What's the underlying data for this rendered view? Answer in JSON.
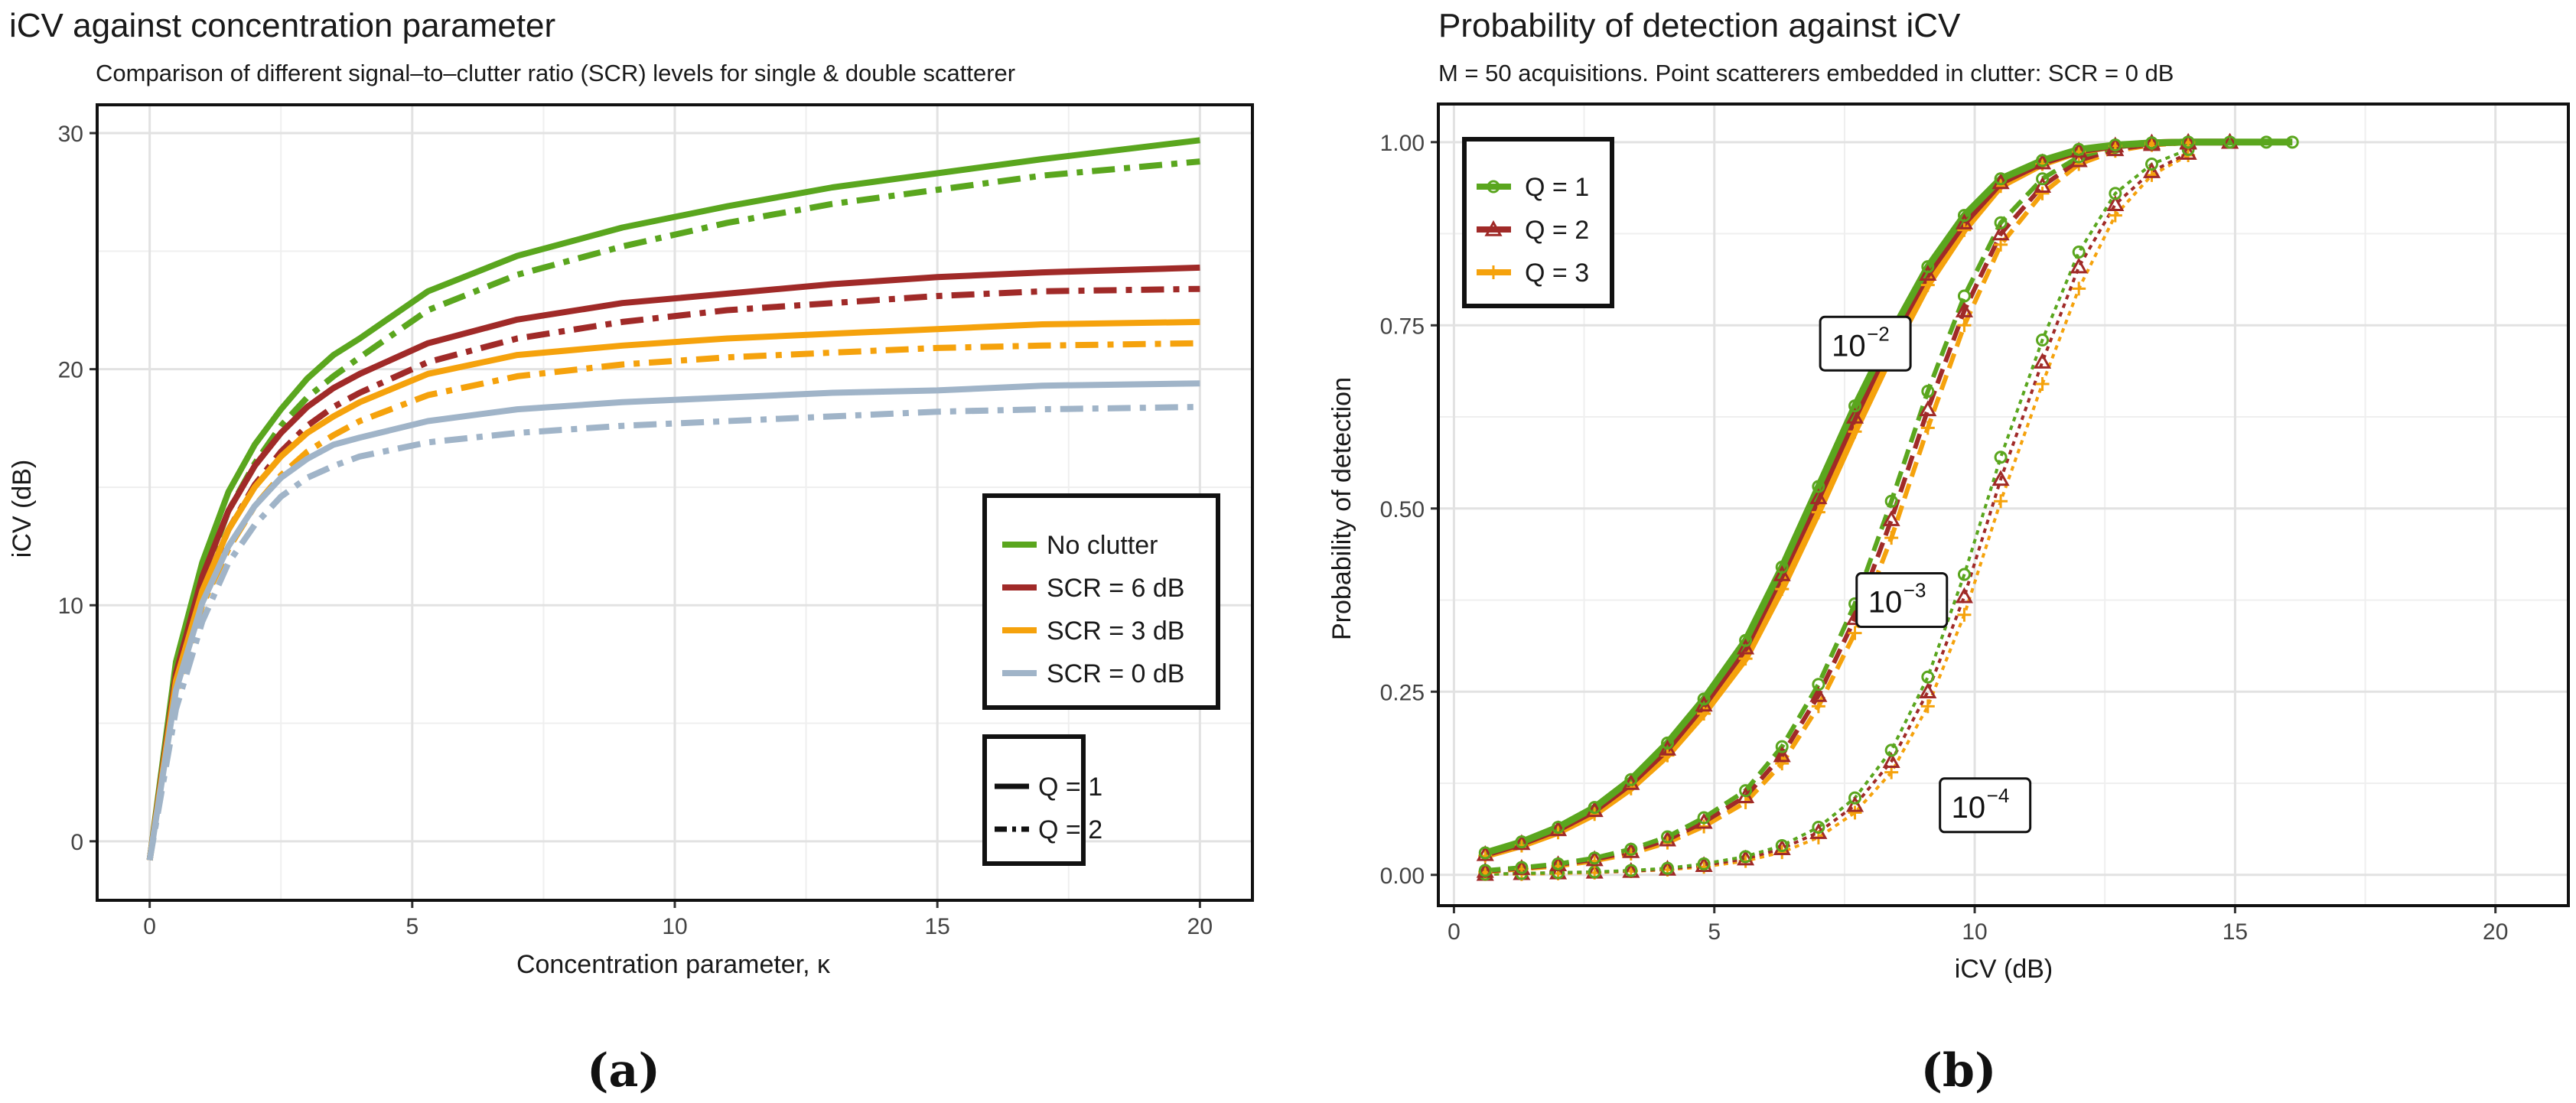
{
  "panel_labels": [
    "(a)",
    "(b)"
  ],
  "chart_data": [
    {
      "type": "line",
      "title": "iCV against concentration parameter",
      "subtitle": "Comparison of different signal–to–clutter ratio (SCR) levels for single & double scatterer",
      "xlabel": "Concentration parameter,  κ",
      "ylabel": "iCV (dB)",
      "xlim": [
        -1,
        21
      ],
      "ylim": [
        -2.5,
        31.2
      ],
      "xticks": [
        0,
        5,
        10,
        15,
        20
      ],
      "yticks": [
        0,
        10,
        20,
        30
      ],
      "grid": true,
      "x": [
        0,
        0.5,
        1,
        1.5,
        2,
        2.5,
        3,
        3.5,
        4,
        5.3,
        7,
        9,
        11,
        13,
        15,
        17,
        20
      ],
      "series": [
        {
          "name": "No clutter",
          "q": 1,
          "color": "#5aa61e",
          "values": [
            -0.8,
            7.6,
            11.8,
            14.8,
            16.8,
            18.3,
            19.6,
            20.6,
            21.3,
            23.3,
            24.8,
            26.0,
            26.9,
            27.7,
            28.3,
            28.9,
            29.7
          ]
        },
        {
          "name": "No clutter",
          "q": 2,
          "color": "#5aa61e",
          "values": [
            -0.8,
            6.8,
            11.0,
            14.0,
            16.0,
            17.6,
            18.8,
            19.7,
            20.5,
            22.5,
            24.0,
            25.2,
            26.2,
            27.0,
            27.6,
            28.2,
            28.8
          ]
        },
        {
          "name": "SCR = 6 dB",
          "q": 1,
          "color": "#a02a28",
          "values": [
            -0.8,
            7.1,
            11.2,
            14.0,
            15.9,
            17.3,
            18.4,
            19.2,
            19.8,
            21.1,
            22.1,
            22.8,
            23.2,
            23.6,
            23.9,
            24.1,
            24.3
          ]
        },
        {
          "name": "SCR = 6 dB",
          "q": 2,
          "color": "#a02a28",
          "values": [
            -0.8,
            6.5,
            10.5,
            13.2,
            15.1,
            16.5,
            17.6,
            18.4,
            19.0,
            20.3,
            21.3,
            22.0,
            22.5,
            22.8,
            23.1,
            23.3,
            23.4
          ]
        },
        {
          "name": "SCR = 3 dB",
          "q": 1,
          "color": "#f5a20c",
          "values": [
            -0.8,
            6.8,
            10.6,
            13.2,
            15.0,
            16.3,
            17.3,
            18.0,
            18.6,
            19.8,
            20.6,
            21.0,
            21.3,
            21.5,
            21.7,
            21.9,
            22.0
          ]
        },
        {
          "name": "SCR = 3 dB",
          "q": 2,
          "color": "#f5a20c",
          "values": [
            -0.8,
            6.2,
            10.0,
            12.4,
            14.2,
            15.5,
            16.5,
            17.2,
            17.8,
            18.9,
            19.7,
            20.2,
            20.5,
            20.7,
            20.9,
            21.0,
            21.1
          ]
        },
        {
          "name": "SCR = 0 dB",
          "q": 1,
          "color": "#a0b4c8",
          "values": [
            -0.8,
            6.4,
            10.1,
            12.5,
            14.2,
            15.4,
            16.2,
            16.8,
            17.1,
            17.8,
            18.3,
            18.6,
            18.8,
            19.0,
            19.1,
            19.3,
            19.4
          ]
        },
        {
          "name": "SCR = 0 dB",
          "q": 2,
          "color": "#a0b4c8",
          "values": [
            -0.8,
            5.6,
            9.3,
            11.8,
            13.4,
            14.6,
            15.4,
            15.9,
            16.3,
            16.9,
            17.3,
            17.6,
            17.8,
            18.0,
            18.2,
            18.3,
            18.4
          ]
        }
      ],
      "legend_color": {
        "entries": [
          "No clutter",
          "SCR = 6 dB",
          "SCR = 3 dB",
          "SCR = 0 dB"
        ],
        "colors": [
          "#5aa61e",
          "#a02a28",
          "#f5a20c",
          "#a0b4c8"
        ],
        "placement": "right-middle"
      },
      "legend_linetype": {
        "entries": [
          "Q = 1",
          "Q = 2"
        ],
        "placement": "bottom-right"
      }
    },
    {
      "type": "line",
      "title": "Probability of detection against iCV",
      "subtitle": "M = 50 acquisitions. Point scatterers embedded in clutter: SCR = 0 dB",
      "xlabel": "iCV (dB)",
      "ylabel": "Probability of detection",
      "xlim": [
        -0.3,
        21.4
      ],
      "ylim": [
        -0.042,
        1.052
      ],
      "xticks": [
        0,
        5,
        10,
        15,
        20
      ],
      "yticks": [
        0,
        0.25,
        0.5,
        0.75,
        1
      ],
      "ytick_labels": [
        "0.00",
        "0.25",
        "0.50",
        "0.75",
        "1.00"
      ],
      "grid": true,
      "legend": {
        "entries": [
          "Q = 1",
          "Q = 2",
          "Q = 3"
        ],
        "colors": [
          "#5aa61e",
          "#a02a28",
          "#f5a20c"
        ],
        "markers": [
          "circle",
          "triangle",
          "plus"
        ],
        "placement": "top-left"
      },
      "annotations": [
        {
          "base": "10",
          "exp": "−2",
          "x": 7.9,
          "y": 0.725
        },
        {
          "base": "10",
          "exp": "−3",
          "x": 8.6,
          "y": 0.375
        },
        {
          "base": "10",
          "exp": "−4",
          "x": 10.2,
          "y": 0.095
        }
      ],
      "series": [
        {
          "name": "Q = 1",
          "pfa": "10^-2",
          "color": "#5aa61e",
          "marker": "circle",
          "x": [
            0.6,
            1.3,
            2.0,
            2.7,
            3.4,
            4.1,
            4.8,
            5.6,
            6.3,
            7.0,
            7.7,
            8.4,
            9.1,
            9.8,
            10.5,
            11.3,
            12.0,
            12.7,
            13.4,
            14.1,
            14.9,
            15.6,
            16.1
          ],
          "values": [
            0.03,
            0.045,
            0.065,
            0.092,
            0.13,
            0.18,
            0.24,
            0.32,
            0.42,
            0.53,
            0.64,
            0.74,
            0.83,
            0.9,
            0.95,
            0.975,
            0.99,
            0.996,
            0.999,
            1.0,
            1.0,
            1.0,
            1.0
          ]
        },
        {
          "name": "Q = 2",
          "pfa": "10^-2",
          "color": "#a02a28",
          "marker": "triangle",
          "x": [
            0.6,
            1.3,
            2.0,
            2.7,
            3.4,
            4.1,
            4.8,
            5.6,
            6.3,
            7.0,
            7.7,
            8.4,
            9.1,
            9.8,
            10.5,
            11.3,
            12.0,
            12.7,
            13.4,
            14.1,
            14.9
          ],
          "values": [
            0.028,
            0.043,
            0.062,
            0.088,
            0.125,
            0.172,
            0.232,
            0.31,
            0.41,
            0.515,
            0.625,
            0.73,
            0.82,
            0.89,
            0.945,
            0.972,
            0.988,
            0.995,
            0.999,
            1.0,
            1.0
          ]
        },
        {
          "name": "Q = 3",
          "pfa": "10^-2",
          "color": "#f5a20c",
          "marker": "plus",
          "x": [
            0.6,
            1.3,
            2.0,
            2.7,
            3.4,
            4.1,
            4.8,
            5.6,
            6.3,
            7.0,
            7.7,
            8.4,
            9.1,
            9.8,
            10.5,
            11.3,
            12.0,
            12.7,
            13.4,
            14.1
          ],
          "values": [
            0.026,
            0.04,
            0.058,
            0.083,
            0.118,
            0.163,
            0.22,
            0.295,
            0.39,
            0.495,
            0.605,
            0.71,
            0.805,
            0.88,
            0.94,
            0.97,
            0.987,
            0.995,
            0.999,
            1.0
          ]
        },
        {
          "name": "Q = 1",
          "pfa": "10^-3",
          "color": "#5aa61e",
          "marker": "circle",
          "x": [
            0.6,
            1.3,
            2.0,
            2.7,
            3.4,
            4.1,
            4.8,
            5.6,
            6.3,
            7.0,
            7.7,
            8.4,
            9.1,
            9.8,
            10.5,
            11.3,
            12.0,
            12.7,
            13.4,
            14.1,
            14.9
          ],
          "values": [
            0.006,
            0.01,
            0.015,
            0.023,
            0.035,
            0.052,
            0.078,
            0.115,
            0.175,
            0.26,
            0.37,
            0.51,
            0.66,
            0.79,
            0.89,
            0.95,
            0.98,
            0.993,
            0.998,
            1.0,
            1.0
          ]
        },
        {
          "name": "Q = 2",
          "pfa": "10^-3",
          "color": "#a02a28",
          "marker": "triangle",
          "x": [
            0.6,
            1.3,
            2.0,
            2.7,
            3.4,
            4.1,
            4.8,
            5.6,
            6.3,
            7.0,
            7.7,
            8.4,
            9.1,
            9.8,
            10.5,
            11.3,
            12.0,
            12.7,
            13.4,
            14.1,
            14.9
          ],
          "values": [
            0.005,
            0.009,
            0.014,
            0.021,
            0.032,
            0.048,
            0.072,
            0.107,
            0.163,
            0.245,
            0.35,
            0.485,
            0.635,
            0.77,
            0.875,
            0.94,
            0.975,
            0.99,
            0.997,
            0.999,
            1.0
          ]
        },
        {
          "name": "Q = 3",
          "pfa": "10^-3",
          "color": "#f5a20c",
          "marker": "plus",
          "x": [
            0.6,
            1.3,
            2.0,
            2.7,
            3.4,
            4.1,
            4.8,
            5.6,
            6.3,
            7.0,
            7.7,
            8.4,
            9.1,
            9.8,
            10.5,
            11.3,
            12.0,
            12.7,
            13.4,
            14.1
          ],
          "values": [
            0.004,
            0.008,
            0.012,
            0.019,
            0.029,
            0.044,
            0.066,
            0.099,
            0.152,
            0.23,
            0.33,
            0.46,
            0.61,
            0.75,
            0.86,
            0.93,
            0.97,
            0.988,
            0.996,
            0.999
          ]
        },
        {
          "name": "Q = 1",
          "pfa": "10^-4",
          "color": "#5aa61e",
          "marker": "circle",
          "x": [
            0.6,
            1.3,
            2.0,
            2.7,
            3.4,
            4.1,
            4.8,
            5.6,
            6.3,
            7.0,
            7.7,
            8.4,
            9.1,
            9.8,
            10.5,
            11.3,
            12.0,
            12.7,
            13.4,
            14.1
          ],
          "values": [
            0.001,
            0.002,
            0.003,
            0.004,
            0.006,
            0.009,
            0.015,
            0.025,
            0.04,
            0.065,
            0.105,
            0.17,
            0.27,
            0.41,
            0.57,
            0.73,
            0.85,
            0.93,
            0.97,
            0.99
          ]
        },
        {
          "name": "Q = 2",
          "pfa": "10^-4",
          "color": "#a02a28",
          "marker": "triangle",
          "x": [
            0.6,
            1.3,
            2.0,
            2.7,
            3.4,
            4.1,
            4.8,
            5.6,
            6.3,
            7.0,
            7.7,
            8.4,
            9.1,
            9.8,
            10.5,
            11.3,
            12.0,
            12.7,
            13.4,
            14.1
          ],
          "values": [
            0.001,
            0.002,
            0.003,
            0.004,
            0.005,
            0.008,
            0.013,
            0.022,
            0.036,
            0.058,
            0.095,
            0.155,
            0.25,
            0.38,
            0.54,
            0.7,
            0.83,
            0.915,
            0.96,
            0.985
          ]
        },
        {
          "name": "Q = 3",
          "pfa": "10^-4",
          "color": "#f5a20c",
          "marker": "plus",
          "x": [
            0.6,
            1.3,
            2.0,
            2.7,
            3.4,
            4.1,
            4.8,
            5.6,
            6.3,
            7.0,
            7.7,
            8.4,
            9.1,
            9.8,
            10.5,
            11.3,
            12.0,
            12.7,
            13.4,
            14.1
          ],
          "values": [
            0.001,
            0.001,
            0.002,
            0.003,
            0.005,
            0.007,
            0.011,
            0.019,
            0.031,
            0.051,
            0.085,
            0.14,
            0.23,
            0.355,
            0.51,
            0.67,
            0.8,
            0.9,
            0.955,
            0.982
          ]
        }
      ]
    }
  ]
}
